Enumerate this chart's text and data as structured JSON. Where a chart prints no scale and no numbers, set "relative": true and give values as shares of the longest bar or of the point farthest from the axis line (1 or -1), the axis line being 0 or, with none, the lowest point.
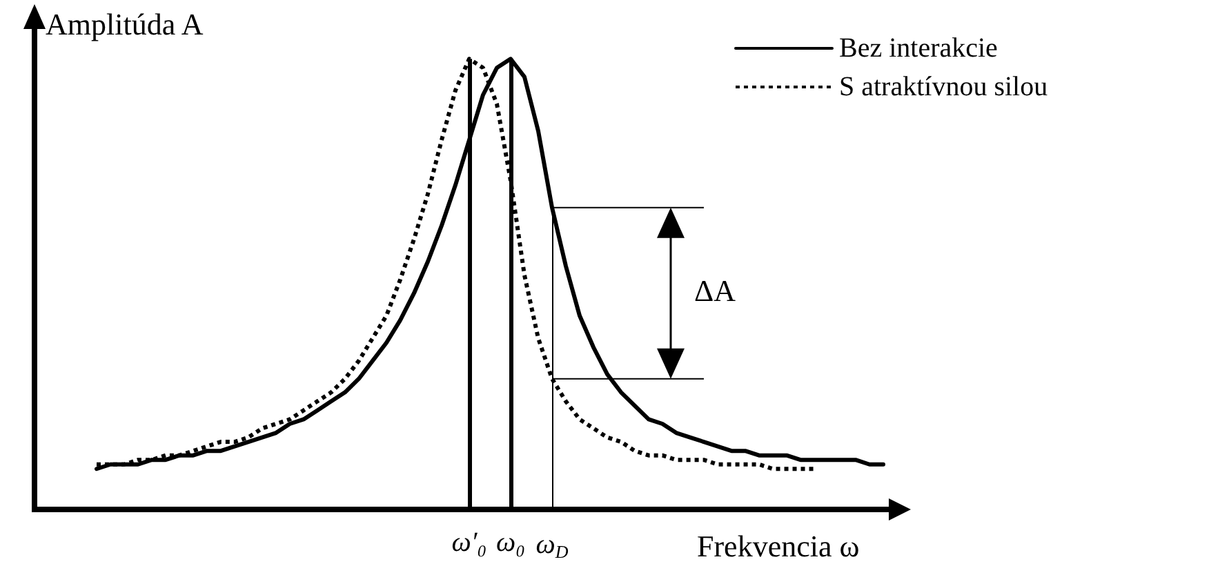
{
  "chart_data": {
    "type": "line",
    "relative": true,
    "ylabel": "Amplitúda A",
    "xlabel": "Frekvencia ω",
    "annotations": [
      "ΔA"
    ],
    "categories": [
      null,
      null,
      null,
      null,
      null,
      null,
      null,
      null,
      null,
      null,
      null,
      null,
      null,
      null,
      null,
      null,
      null,
      null,
      null,
      null,
      null,
      null,
      null,
      null,
      null,
      null,
      null,
      "ω′₀",
      null,
      null,
      "ω₀",
      null,
      null,
      "ω$_{D}$",
      null,
      null,
      null,
      null,
      null,
      null,
      null,
      null,
      null,
      null,
      null,
      null,
      null,
      null,
      null,
      null,
      null,
      null,
      null,
      null,
      null,
      null,
      null,
      null
    ],
    "series": [
      {
        "name": "Bez interakcie",
        "color": "#000000",
        "line_style": "solid",
        "values": [
          0.09,
          0.1,
          0.1,
          0.1,
          0.11,
          0.11,
          0.12,
          0.12,
          0.13,
          0.13,
          0.14,
          0.15,
          0.16,
          0.17,
          0.19,
          0.2,
          0.22,
          0.24,
          0.26,
          0.29,
          0.33,
          0.37,
          0.42,
          0.48,
          0.55,
          0.63,
          0.72,
          0.82,
          0.92,
          0.98,
          1,
          0.96,
          0.84,
          0.67,
          0.54,
          0.43,
          0.36,
          0.3,
          0.26,
          0.23,
          0.2,
          0.19,
          0.17,
          0.16,
          0.15,
          0.14,
          0.13,
          0.13,
          0.12,
          0.12,
          0.12,
          0.11,
          0.11,
          0.11,
          0.11,
          0.11,
          0.1,
          0.1
        ]
      },
      {
        "name": "S atraktívnou silou",
        "color": "#000000",
        "line_style": "dotted",
        "values": [
          0.1,
          0.1,
          0.1,
          0.11,
          0.11,
          0.12,
          0.12,
          0.13,
          0.14,
          0.15,
          0.15,
          0.16,
          0.18,
          0.19,
          0.2,
          0.22,
          0.24,
          0.26,
          0.29,
          0.33,
          0.38,
          0.43,
          0.51,
          0.6,
          0.7,
          0.82,
          0.93,
          1,
          0.98,
          0.9,
          0.73,
          0.52,
          0.38,
          0.29,
          0.24,
          0.2,
          0.18,
          0.16,
          0.15,
          0.13,
          0.12,
          0.12,
          0.11,
          0.11,
          0.11,
          0.1,
          0.1,
          0.1,
          0.1,
          0.09,
          0.09,
          0.09,
          0.09,
          null,
          null,
          null,
          null,
          null
        ]
      }
    ],
    "ref_lines": [
      {
        "axis": "x",
        "value": "ω′₀"
      },
      {
        "axis": "x",
        "value": "ω₀"
      },
      {
        "axis": "x",
        "value": "ω$_{D}$"
      }
    ],
    "legend": "top right",
    "marker": "none",
    "grid": false
  }
}
